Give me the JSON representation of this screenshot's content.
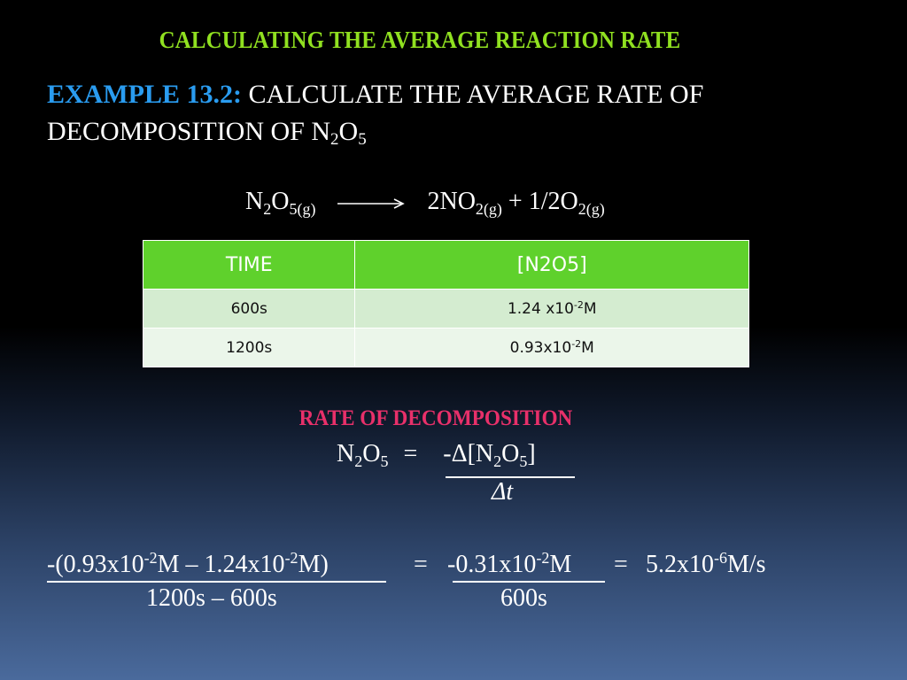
{
  "title": "CALCULATING THE AVERAGE REACTION RATE",
  "example": {
    "label": "EXAMPLE 13.2:",
    "text_line1": "CALCULATE THE AVERAGE RATE OF",
    "text_line2": "DECOMPOSITION OF N",
    "sub1": "2",
    "mid": "O",
    "sub2": "5"
  },
  "equation": {
    "reactant": "N",
    "r_sub1": "2",
    "r_mid": "O",
    "r_sub2": "5(g)",
    "product1": "2NO",
    "p1_sub": "2(g)",
    "plus": "+",
    "product2": "1/2O",
    "p2_sub": "2(g)"
  },
  "table": {
    "headers": [
      "TIME",
      "[N2O5]"
    ],
    "rows": [
      {
        "time": "600s",
        "conc_base": "1.24 x10",
        "conc_exp": "-2",
        "conc_unit": "M"
      },
      {
        "time": "1200s",
        "conc_base": "0.93x10",
        "conc_exp": "-2",
        "conc_unit": "M"
      }
    ]
  },
  "rate": {
    "heading": "RATE OF DECOMPOSITION",
    "lhs": "N",
    "lhs_sub1": "2",
    "lhs_mid": "O",
    "lhs_sub2": "5",
    "equals": "=",
    "num": "-Δ[N",
    "num_sub1": "2",
    "num_mid": "O",
    "num_sub2": "5",
    "num_end": "]",
    "den": "Δt"
  },
  "calc": {
    "num_a": "-(0.93x10",
    "exp_a": "-2",
    "num_b": "M – 1.24x10",
    "exp_b": "-2",
    "num_c": "M)",
    "den1": "1200s – 600s",
    "eq1": "=",
    "mid_base": "-0.31x10",
    "mid_exp": "-2",
    "mid_unit": "M",
    "den2": "600s",
    "eq2": "=",
    "result_base": "5.2x10",
    "result_exp": "-6",
    "result_unit": "M/s"
  }
}
